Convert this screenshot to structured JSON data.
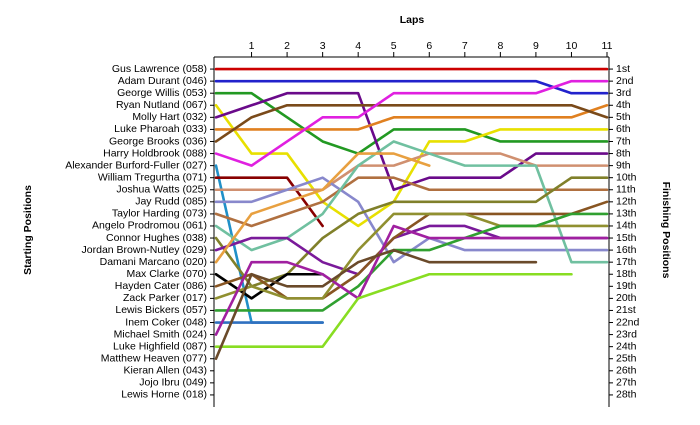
{
  "chart_data": {
    "type": "line",
    "title": "Laps",
    "ylabel": "Starting Positions",
    "y2label": "Finishing Positions",
    "x": [
      0,
      1,
      2,
      3,
      4,
      5,
      6,
      7,
      8,
      9,
      10,
      11
    ],
    "xlim": [
      0,
      11
    ],
    "xticks": [
      1,
      2,
      3,
      4,
      5,
      6,
      7,
      8,
      9,
      10,
      11
    ],
    "ylim": [
      29,
      0
    ],
    "y2lim": [
      29,
      0
    ],
    "yticks": [
      {
        "value": 1,
        "label": "Gus Lawrence (058)"
      },
      {
        "value": 2,
        "label": "Adam Durant (046)"
      },
      {
        "value": 3,
        "label": "George Willis (053)"
      },
      {
        "value": 4,
        "label": "Ryan Nutland (067)"
      },
      {
        "value": 5,
        "label": "Molly Hart (032)"
      },
      {
        "value": 6,
        "label": "Luke Pharoah (033)"
      },
      {
        "value": 7,
        "label": "George Brooks (036)"
      },
      {
        "value": 8,
        "label": "Harry Holdbrook (088)"
      },
      {
        "value": 9,
        "label": "Alexander Burford-Fuller (027)"
      },
      {
        "value": 10,
        "label": "William Tregurtha (071)"
      },
      {
        "value": 11,
        "label": "Joshua Watts (025)"
      },
      {
        "value": 12,
        "label": "Jay Rudd (085)"
      },
      {
        "value": 13,
        "label": "Taylor Harding (073)"
      },
      {
        "value": 14,
        "label": "Angelo Prodromou (061)"
      },
      {
        "value": 15,
        "label": "Connor Hughes (038)"
      },
      {
        "value": 16,
        "label": "Jordan Brown-Nutley (029)"
      },
      {
        "value": 17,
        "label": "Damani Marcano (020)"
      },
      {
        "value": 18,
        "label": "Max Clarke (070)"
      },
      {
        "value": 19,
        "label": "Hayden Cater (086)"
      },
      {
        "value": 20,
        "label": "Zack Parker (017)"
      },
      {
        "value": 21,
        "label": "Lewis Bickers (057)"
      },
      {
        "value": 22,
        "label": "Inem Coker (048)"
      },
      {
        "value": 23,
        "label": "Michael Smith (024)"
      },
      {
        "value": 24,
        "label": "Luke Highfield (087)"
      },
      {
        "value": 25,
        "label": "Matthew Heaven (077)"
      },
      {
        "value": 26,
        "label": "Kieran Allen (043)"
      },
      {
        "value": 27,
        "label": "Jojo Ibru (049)"
      },
      {
        "value": 28,
        "label": "Lewis Horne (018)"
      }
    ],
    "y2ticks": [
      {
        "value": 1,
        "label": "1st"
      },
      {
        "value": 2,
        "label": "2nd"
      },
      {
        "value": 3,
        "label": "3rd"
      },
      {
        "value": 4,
        "label": "4th"
      },
      {
        "value": 5,
        "label": "5th"
      },
      {
        "value": 6,
        "label": "6th"
      },
      {
        "value": 7,
        "label": "7th"
      },
      {
        "value": 8,
        "label": "8th"
      },
      {
        "value": 9,
        "label": "9th"
      },
      {
        "value": 10,
        "label": "10th"
      },
      {
        "value": 11,
        "label": "11th"
      },
      {
        "value": 12,
        "label": "12th"
      },
      {
        "value": 13,
        "label": "13th"
      },
      {
        "value": 14,
        "label": "14th"
      },
      {
        "value": 15,
        "label": "15th"
      },
      {
        "value": 16,
        "label": "16th"
      },
      {
        "value": 17,
        "label": "17th"
      },
      {
        "value": 18,
        "label": "18th"
      },
      {
        "value": 19,
        "label": "19th"
      },
      {
        "value": 20,
        "label": "20th"
      },
      {
        "value": 21,
        "label": "21st"
      },
      {
        "value": 22,
        "label": "22nd"
      },
      {
        "value": 23,
        "label": "23rd"
      },
      {
        "value": 24,
        "label": "24th"
      },
      {
        "value": 25,
        "label": "25th"
      },
      {
        "value": 26,
        "label": "26th"
      },
      {
        "value": 27,
        "label": "27th"
      },
      {
        "value": 28,
        "label": "28th"
      }
    ],
    "series": [
      {
        "color": "#cc0000",
        "values": [
          1,
          1,
          1,
          1,
          1,
          1,
          1,
          1,
          1,
          1,
          1,
          1
        ]
      },
      {
        "color": "#2222cc",
        "values": [
          2,
          2,
          2,
          2,
          2,
          2,
          2,
          2,
          2,
          2,
          3,
          3
        ]
      },
      {
        "color": "#229922",
        "values": [
          3,
          3,
          5,
          7,
          8,
          6,
          6,
          6,
          7,
          7,
          7,
          7
        ]
      },
      {
        "color": "#e8e000",
        "values": [
          4,
          8,
          8,
          12,
          14,
          12,
          7,
          7,
          6,
          6,
          6,
          6
        ]
      },
      {
        "color": "#6a0a8a",
        "values": [
          5,
          4,
          3,
          3,
          3,
          11,
          10,
          10,
          10,
          8,
          8,
          8
        ]
      },
      {
        "color": "#e08020",
        "values": [
          6,
          6,
          6,
          6,
          6,
          5,
          5,
          5,
          5,
          5,
          5,
          4
        ]
      },
      {
        "color": "#7a4a1a",
        "values": [
          7,
          5,
          4,
          4,
          4,
          4,
          4,
          4,
          4,
          4,
          4,
          5
        ]
      },
      {
        "color": "#e020e0",
        "values": [
          8,
          9,
          7,
          5,
          5,
          3,
          3,
          3,
          3,
          3,
          2,
          2
        ]
      },
      {
        "color": "#2090c8",
        "values": [
          9,
          22,
          22,
          22,
          null,
          null,
          null,
          null,
          null,
          null,
          null,
          null
        ]
      },
      {
        "color": "#880000",
        "values": [
          10,
          10,
          10,
          14,
          null,
          null,
          null,
          null,
          null,
          null,
          null,
          null
        ]
      },
      {
        "color": "#d09070",
        "values": [
          11,
          11,
          11,
          11,
          9,
          9,
          8,
          8,
          8,
          9,
          9,
          9
        ]
      },
      {
        "color": "#8888cc",
        "values": [
          12,
          12,
          11,
          10,
          12,
          17,
          15,
          16,
          16,
          16,
          16,
          16
        ]
      },
      {
        "color": "#b07040",
        "values": [
          13,
          14,
          13,
          12,
          10,
          10,
          11,
          11,
          11,
          11,
          11,
          11
        ]
      },
      {
        "color": "#70c0a0",
        "values": [
          14,
          16,
          15,
          13,
          9,
          7,
          8,
          9,
          9,
          9,
          17,
          17
        ]
      },
      {
        "color": "#80802a",
        "values": [
          15,
          19,
          18,
          15,
          13,
          12,
          12,
          12,
          12,
          12,
          10,
          10
        ]
      },
      {
        "color": "#7a1a9a",
        "values": [
          16,
          15,
          15,
          17,
          18,
          15,
          14,
          14,
          15,
          15,
          15,
          15
        ]
      },
      {
        "color": "#e8a040",
        "values": [
          17,
          13,
          12,
          11,
          8,
          8,
          9,
          null,
          null,
          null,
          null,
          null
        ]
      },
      {
        "color": "#000000",
        "values": [
          18,
          20,
          18,
          18,
          null,
          null,
          null,
          null,
          null,
          null,
          null,
          null
        ]
      },
      {
        "color": "#885522",
        "values": [
          19,
          18,
          20,
          20,
          18,
          15,
          13,
          13,
          13,
          13,
          13,
          12
        ]
      },
      {
        "color": "#909030",
        "values": [
          20,
          19,
          20,
          20,
          16,
          13,
          13,
          13,
          14,
          14,
          14,
          14
        ]
      },
      {
        "color": "#30a030",
        "values": [
          21,
          21,
          21,
          21,
          19,
          16,
          16,
          15,
          14,
          14,
          13,
          13
        ]
      },
      {
        "color": "#3070c0",
        "values": [
          22,
          22,
          22,
          22,
          null,
          null,
          null,
          null,
          null,
          null,
          null,
          null
        ]
      },
      {
        "color": "#a020a0",
        "values": [
          23,
          17,
          17,
          18,
          20,
          14,
          15,
          15,
          15,
          15,
          15,
          15
        ]
      },
      {
        "color": "#88dd22",
        "values": [
          24,
          24,
          24,
          24,
          20,
          19,
          18,
          18,
          18,
          18,
          18,
          null
        ]
      },
      {
        "color": "#6a4a2a",
        "values": [
          25,
          18,
          19,
          19,
          17,
          16,
          17,
          17,
          17,
          17,
          null,
          null
        ]
      }
    ]
  }
}
